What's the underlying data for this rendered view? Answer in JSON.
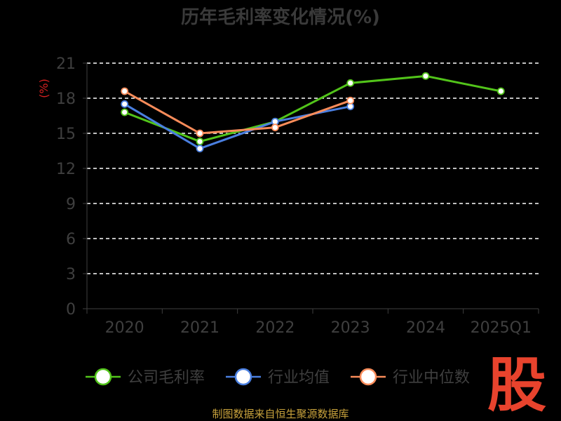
{
  "chart_data": {
    "type": "line",
    "title": "历年毛利率变化情况(%)",
    "ylabel": "(%)",
    "xlabel": "",
    "categories": [
      "2020",
      "2021",
      "2022",
      "2023",
      "2024",
      "2025Q1"
    ],
    "yticks": [
      "0",
      "3",
      "6",
      "9",
      "12",
      "15",
      "18",
      "21"
    ],
    "ylim": [
      0,
      21
    ],
    "grid": true,
    "legend_position": "bottom",
    "series": [
      {
        "name": "公司毛利率",
        "color": "#52c41a",
        "values": [
          16.8,
          14.3,
          16.0,
          19.3,
          19.9,
          18.6
        ]
      },
      {
        "name": "行业均值",
        "color": "#4a7fe0",
        "values": [
          17.5,
          13.7,
          16.0,
          17.3,
          null,
          null
        ]
      },
      {
        "name": "行业中位数",
        "color": "#fa8c5a",
        "values": [
          18.6,
          15.0,
          15.5,
          17.8,
          null,
          null
        ]
      }
    ]
  },
  "source_text": "制图数据来自恒生聚源数据库",
  "logo_text": "股"
}
